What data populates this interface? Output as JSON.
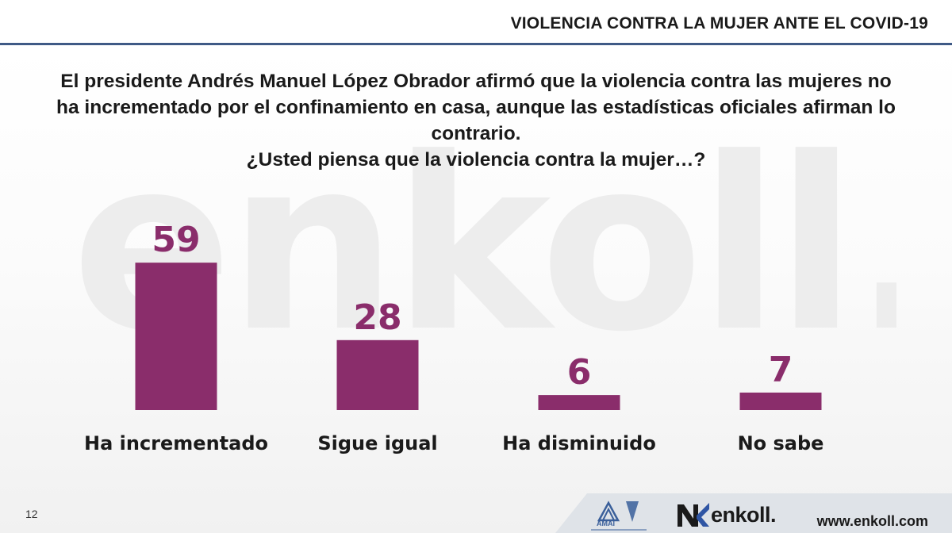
{
  "header": {
    "title": "VIOLENCIA CONTRA LA MUJER ANTE EL COVID-19"
  },
  "question": {
    "lines": [
      "El presidente Andrés Manuel López Obrador afirmó que la violencia contra las mujeres no",
      "ha incrementado por el confinamiento en casa, aunque las estadísticas oficiales afirman lo",
      "contrario.",
      "¿Usted piensa que la violencia contra la mujer…?"
    ]
  },
  "watermark": {
    "text": "enkoll."
  },
  "chart_data": {
    "type": "bar",
    "title": "¿Usted piensa que la violencia contra la mujer…?",
    "categories": [
      "Ha incrementado",
      "Sigue igual",
      "Ha disminuido",
      "No sabe"
    ],
    "values": [
      59,
      28,
      6,
      7
    ],
    "xlabel": "",
    "ylabel": "",
    "ylim": [
      0,
      60
    ],
    "grid": false,
    "bar_color": "#8a2d6b",
    "value_color": "#8a2d6b"
  },
  "footer": {
    "page_number": "12",
    "amai_logo_text": "AMAI",
    "brand": "enkoll.",
    "website": "www.enkoll.com"
  },
  "colors": {
    "accent_rule": "#3f5a86",
    "bar": "#8a2d6b",
    "footer_panel": "#dfe3e8",
    "amai_blue": "#3a5f9a"
  }
}
